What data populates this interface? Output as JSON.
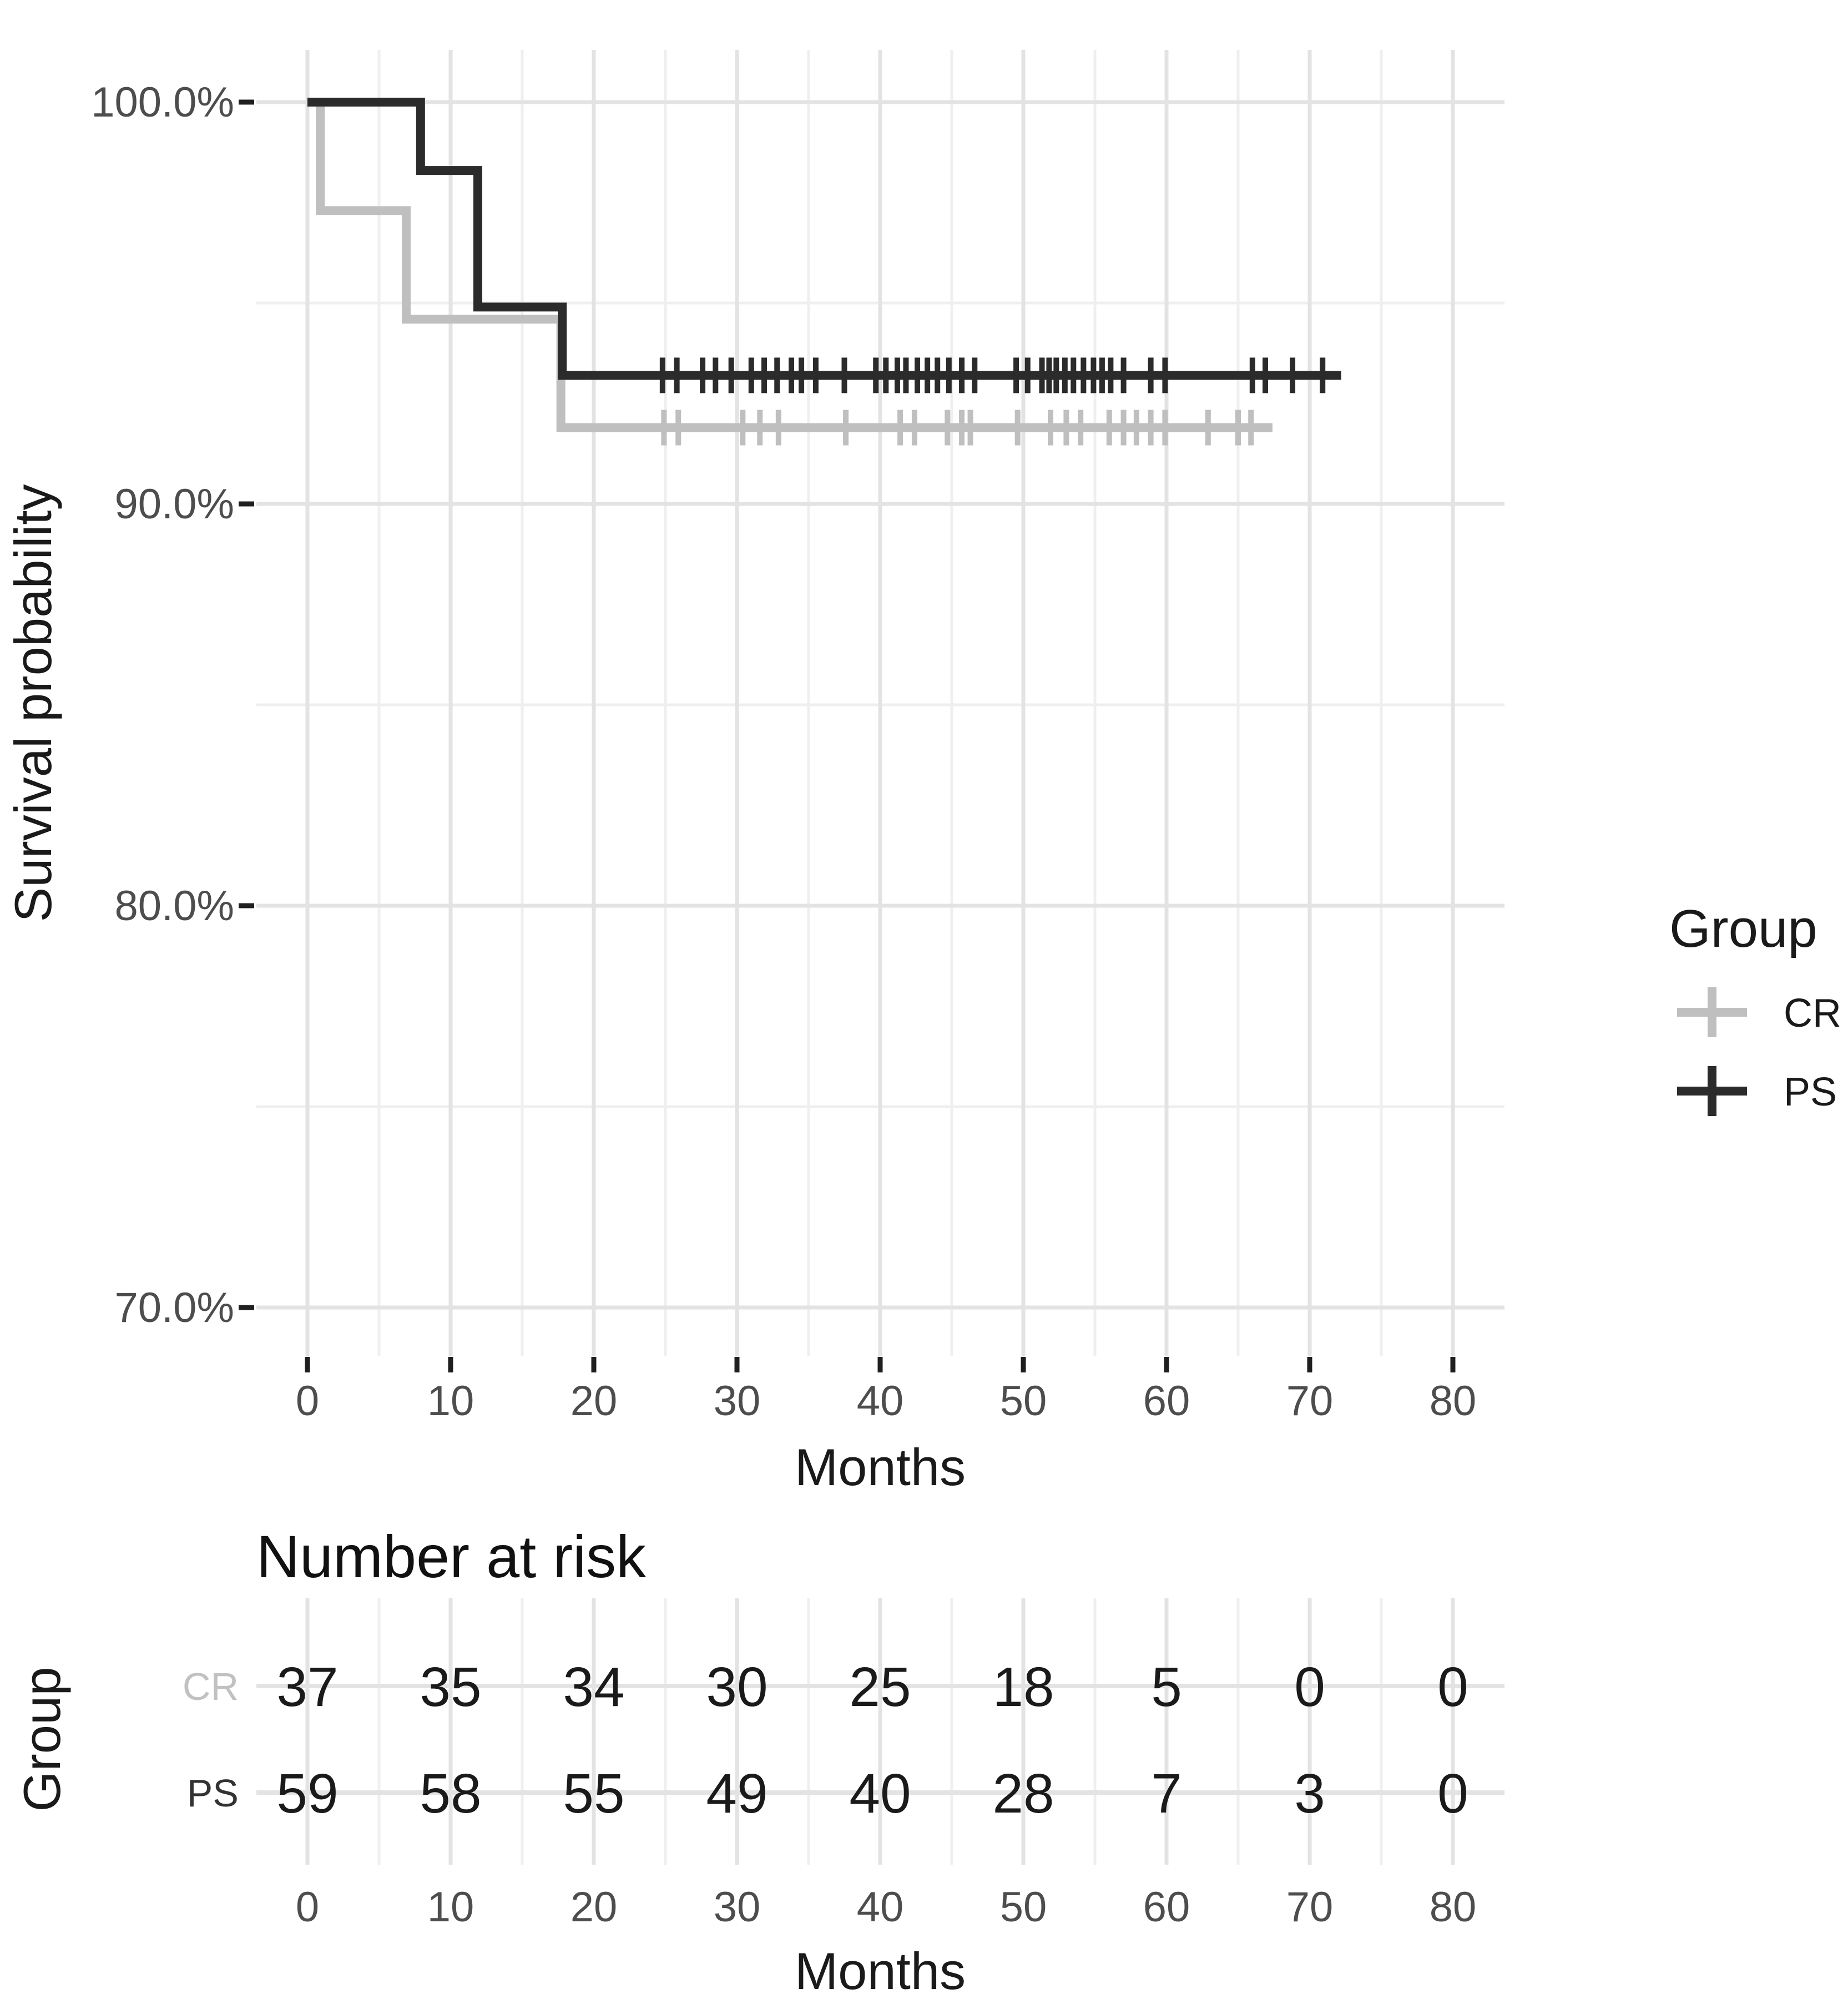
{
  "figure": {
    "background": "#ffffff"
  },
  "chart_data": {
    "type": "line",
    "subtype": "kaplan-meier-step-survival",
    "title": "",
    "xlabel": "Months",
    "ylabel": "Survival probability",
    "xlim": [
      0,
      80
    ],
    "ylim_pct": [
      70,
      100
    ],
    "x_major_ticks": [
      0,
      10,
      20,
      30,
      40,
      50,
      60,
      70,
      80
    ],
    "x_minor_ticks": [
      5,
      15,
      25,
      35,
      45,
      55,
      65,
      75
    ],
    "y_major_ticks_pct": [
      100,
      90,
      80,
      70
    ],
    "y_tick_labels": [
      "100.0%",
      "90.0%",
      "80.0%",
      "70.0%"
    ],
    "y_minor_ticks_pct": [
      95,
      85,
      75
    ],
    "grid": true,
    "legend_position": "right",
    "series": [
      {
        "name": "CR",
        "color": "#bfbfbf",
        "start_pct": 100,
        "drops": [
          {
            "t": 0.9,
            "level_pct": 97.3
          },
          {
            "t": 6.9,
            "level_pct": 94.6
          },
          {
            "t": 17.7,
            "level_pct": 91.9
          }
        ],
        "end_t": 67.4,
        "censor_times": [
          24.9,
          25.9,
          30.4,
          31.6,
          32.9,
          37.6,
          41.4,
          42.4,
          44.7,
          45.7,
          46.3,
          49.6,
          51.9,
          53,
          54,
          56,
          57,
          57.9,
          58.9,
          59.9,
          62.9,
          65,
          65.9
        ]
      },
      {
        "name": "PS",
        "color": "#2b2b2b",
        "start_pct": 100,
        "drops": [
          {
            "t": 7.9,
            "level_pct": 98.3
          },
          {
            "t": 11.9,
            "level_pct": 94.9
          },
          {
            "t": 17.8,
            "level_pct": 93.2
          }
        ],
        "end_t": 72.2,
        "censor_times": [
          24.8,
          25.8,
          27.6,
          28.5,
          29.6,
          31,
          31.9,
          32.8,
          33.8,
          34.5,
          35.5,
          37.5,
          39.7,
          40.4,
          41.2,
          41.8,
          42.6,
          43.3,
          44,
          44.8,
          45.7,
          46.6,
          49.5,
          50.3,
          51.3,
          51.8,
          52.3,
          52.9,
          53.5,
          54.2,
          54.9,
          55.5,
          56.1,
          57,
          58.9,
          59.9,
          66,
          66.9,
          68.8,
          70.9
        ]
      }
    ]
  },
  "legend": {
    "title": "Group",
    "entries": [
      {
        "label": "CR",
        "color": "#bfbfbf"
      },
      {
        "label": "PS",
        "color": "#2b2b2b"
      }
    ]
  },
  "risk_table": {
    "title": "Number at risk",
    "group_axis_label": "Group",
    "xlabel": "Months",
    "times": [
      0,
      10,
      20,
      30,
      40,
      50,
      60,
      70,
      80
    ],
    "rows": [
      {
        "label": "CR",
        "color": "#c1c1c1",
        "counts": [
          37,
          35,
          34,
          30,
          25,
          18,
          5,
          0,
          0
        ]
      },
      {
        "label": "PS",
        "color": "#333333",
        "counts": [
          59,
          58,
          55,
          49,
          40,
          28,
          7,
          3,
          0
        ]
      }
    ]
  },
  "style": {
    "grid_major_color": "#e3e3e3",
    "grid_minor_color": "#efefef",
    "tick_mark_color": "#1f1f1f",
    "axis_text_color": "#4d4d4d"
  }
}
